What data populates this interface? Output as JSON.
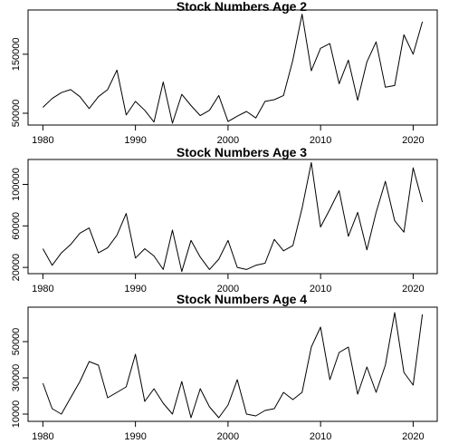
{
  "chart_data": [
    {
      "type": "line",
      "title": "Stock Numbers Age 2",
      "xlabel": "",
      "ylabel": "",
      "x": [
        1980,
        1981,
        1982,
        1983,
        1984,
        1985,
        1986,
        1987,
        1988,
        1989,
        1990,
        1991,
        1992,
        1993,
        1994,
        1995,
        1996,
        1997,
        1998,
        1999,
        2000,
        2001,
        2002,
        2003,
        2004,
        2005,
        2006,
        2007,
        2008,
        2009,
        2010,
        2011,
        2012,
        2013,
        2014,
        2015,
        2016,
        2017,
        2018,
        2019,
        2020,
        2021
      ],
      "series": [
        {
          "values": [
            60000,
            75000,
            85000,
            90000,
            78000,
            58000,
            78000,
            90000,
            123000,
            47000,
            70000,
            55000,
            35000,
            103000,
            33000,
            82000,
            63000,
            46000,
            55000,
            80000,
            36000,
            45000,
            53000,
            42000,
            70000,
            73000,
            80000,
            140000,
            218000,
            122000,
            160000,
            168000,
            100000,
            140000,
            72000,
            137000,
            171000,
            94000,
            97000,
            183000,
            150000,
            205000
          ]
        }
      ],
      "xticks": [
        "1980",
        "1990",
        "2000",
        "2010",
        "2020"
      ],
      "yticks": [
        "50000",
        "150000"
      ],
      "xlim": [
        1978.4,
        2022.6
      ],
      "ylim": [
        30000,
        225000
      ]
    },
    {
      "type": "line",
      "title": "Stock Numbers Age 3",
      "xlabel": "",
      "ylabel": "",
      "x": [
        1980,
        1981,
        1982,
        1983,
        1984,
        1985,
        1986,
        1987,
        1988,
        1989,
        1990,
        1991,
        1992,
        1993,
        1994,
        1995,
        1996,
        1997,
        1998,
        1999,
        2000,
        2001,
        2002,
        2003,
        2004,
        2005,
        2006,
        2007,
        2008,
        2009,
        2010,
        2011,
        2012,
        2013,
        2014,
        2015,
        2016,
        2017,
        2018,
        2019,
        2020,
        2021
      ],
      "series": [
        {
          "values": [
            38000,
            22000,
            34000,
            42000,
            53000,
            58000,
            34000,
            39000,
            51000,
            72000,
            29000,
            38000,
            31000,
            18000,
            56000,
            16000,
            46000,
            30000,
            18000,
            28000,
            46000,
            20000,
            18000,
            22000,
            24000,
            47000,
            36000,
            41000,
            77000,
            121000,
            59000,
            76000,
            94000,
            50000,
            73000,
            37000,
            73000,
            103000,
            65000,
            54000,
            116000,
            83000
          ]
        }
      ],
      "xticks": [
        "1980",
        "1990",
        "2000",
        "2010",
        "2020"
      ],
      "yticks": [
        "20000",
        "60000",
        "100000"
      ],
      "xlim": [
        1978.4,
        2022.6
      ],
      "ylim": [
        14000,
        124000
      ]
    },
    {
      "type": "line",
      "title": "Stock Numbers Age 4",
      "xlabel": "",
      "ylabel": "",
      "x": [
        1980,
        1981,
        1982,
        1983,
        1984,
        1985,
        1986,
        1987,
        1988,
        1989,
        1990,
        1991,
        1992,
        1993,
        1994,
        1995,
        1996,
        1997,
        1998,
        1999,
        2000,
        2001,
        2002,
        2003,
        2004,
        2005,
        2006,
        2007,
        2008,
        2009,
        2010,
        2011,
        2012,
        2013,
        2014,
        2015,
        2016,
        2017,
        2018,
        2019,
        2020,
        2021
      ],
      "series": [
        {
          "values": [
            27000,
            13000,
            10000,
            19000,
            28000,
            39000,
            37000,
            19000,
            22000,
            25000,
            43000,
            17000,
            24000,
            16000,
            10000,
            28000,
            8000,
            24000,
            14000,
            8000,
            15000,
            29000,
            10000,
            9000,
            12000,
            13000,
            22000,
            18000,
            22000,
            47000,
            58000,
            29000,
            44000,
            47000,
            21000,
            36000,
            22000,
            37000,
            66000,
            33000,
            26000,
            65000
          ]
        }
      ],
      "xticks": [
        "1980",
        "1990",
        "2000",
        "2010",
        "2020"
      ],
      "yticks": [
        "10000",
        "30000",
        "50000"
      ],
      "xlim": [
        1978.4,
        2022.6
      ],
      "ylim": [
        6000,
        69000
      ]
    }
  ]
}
